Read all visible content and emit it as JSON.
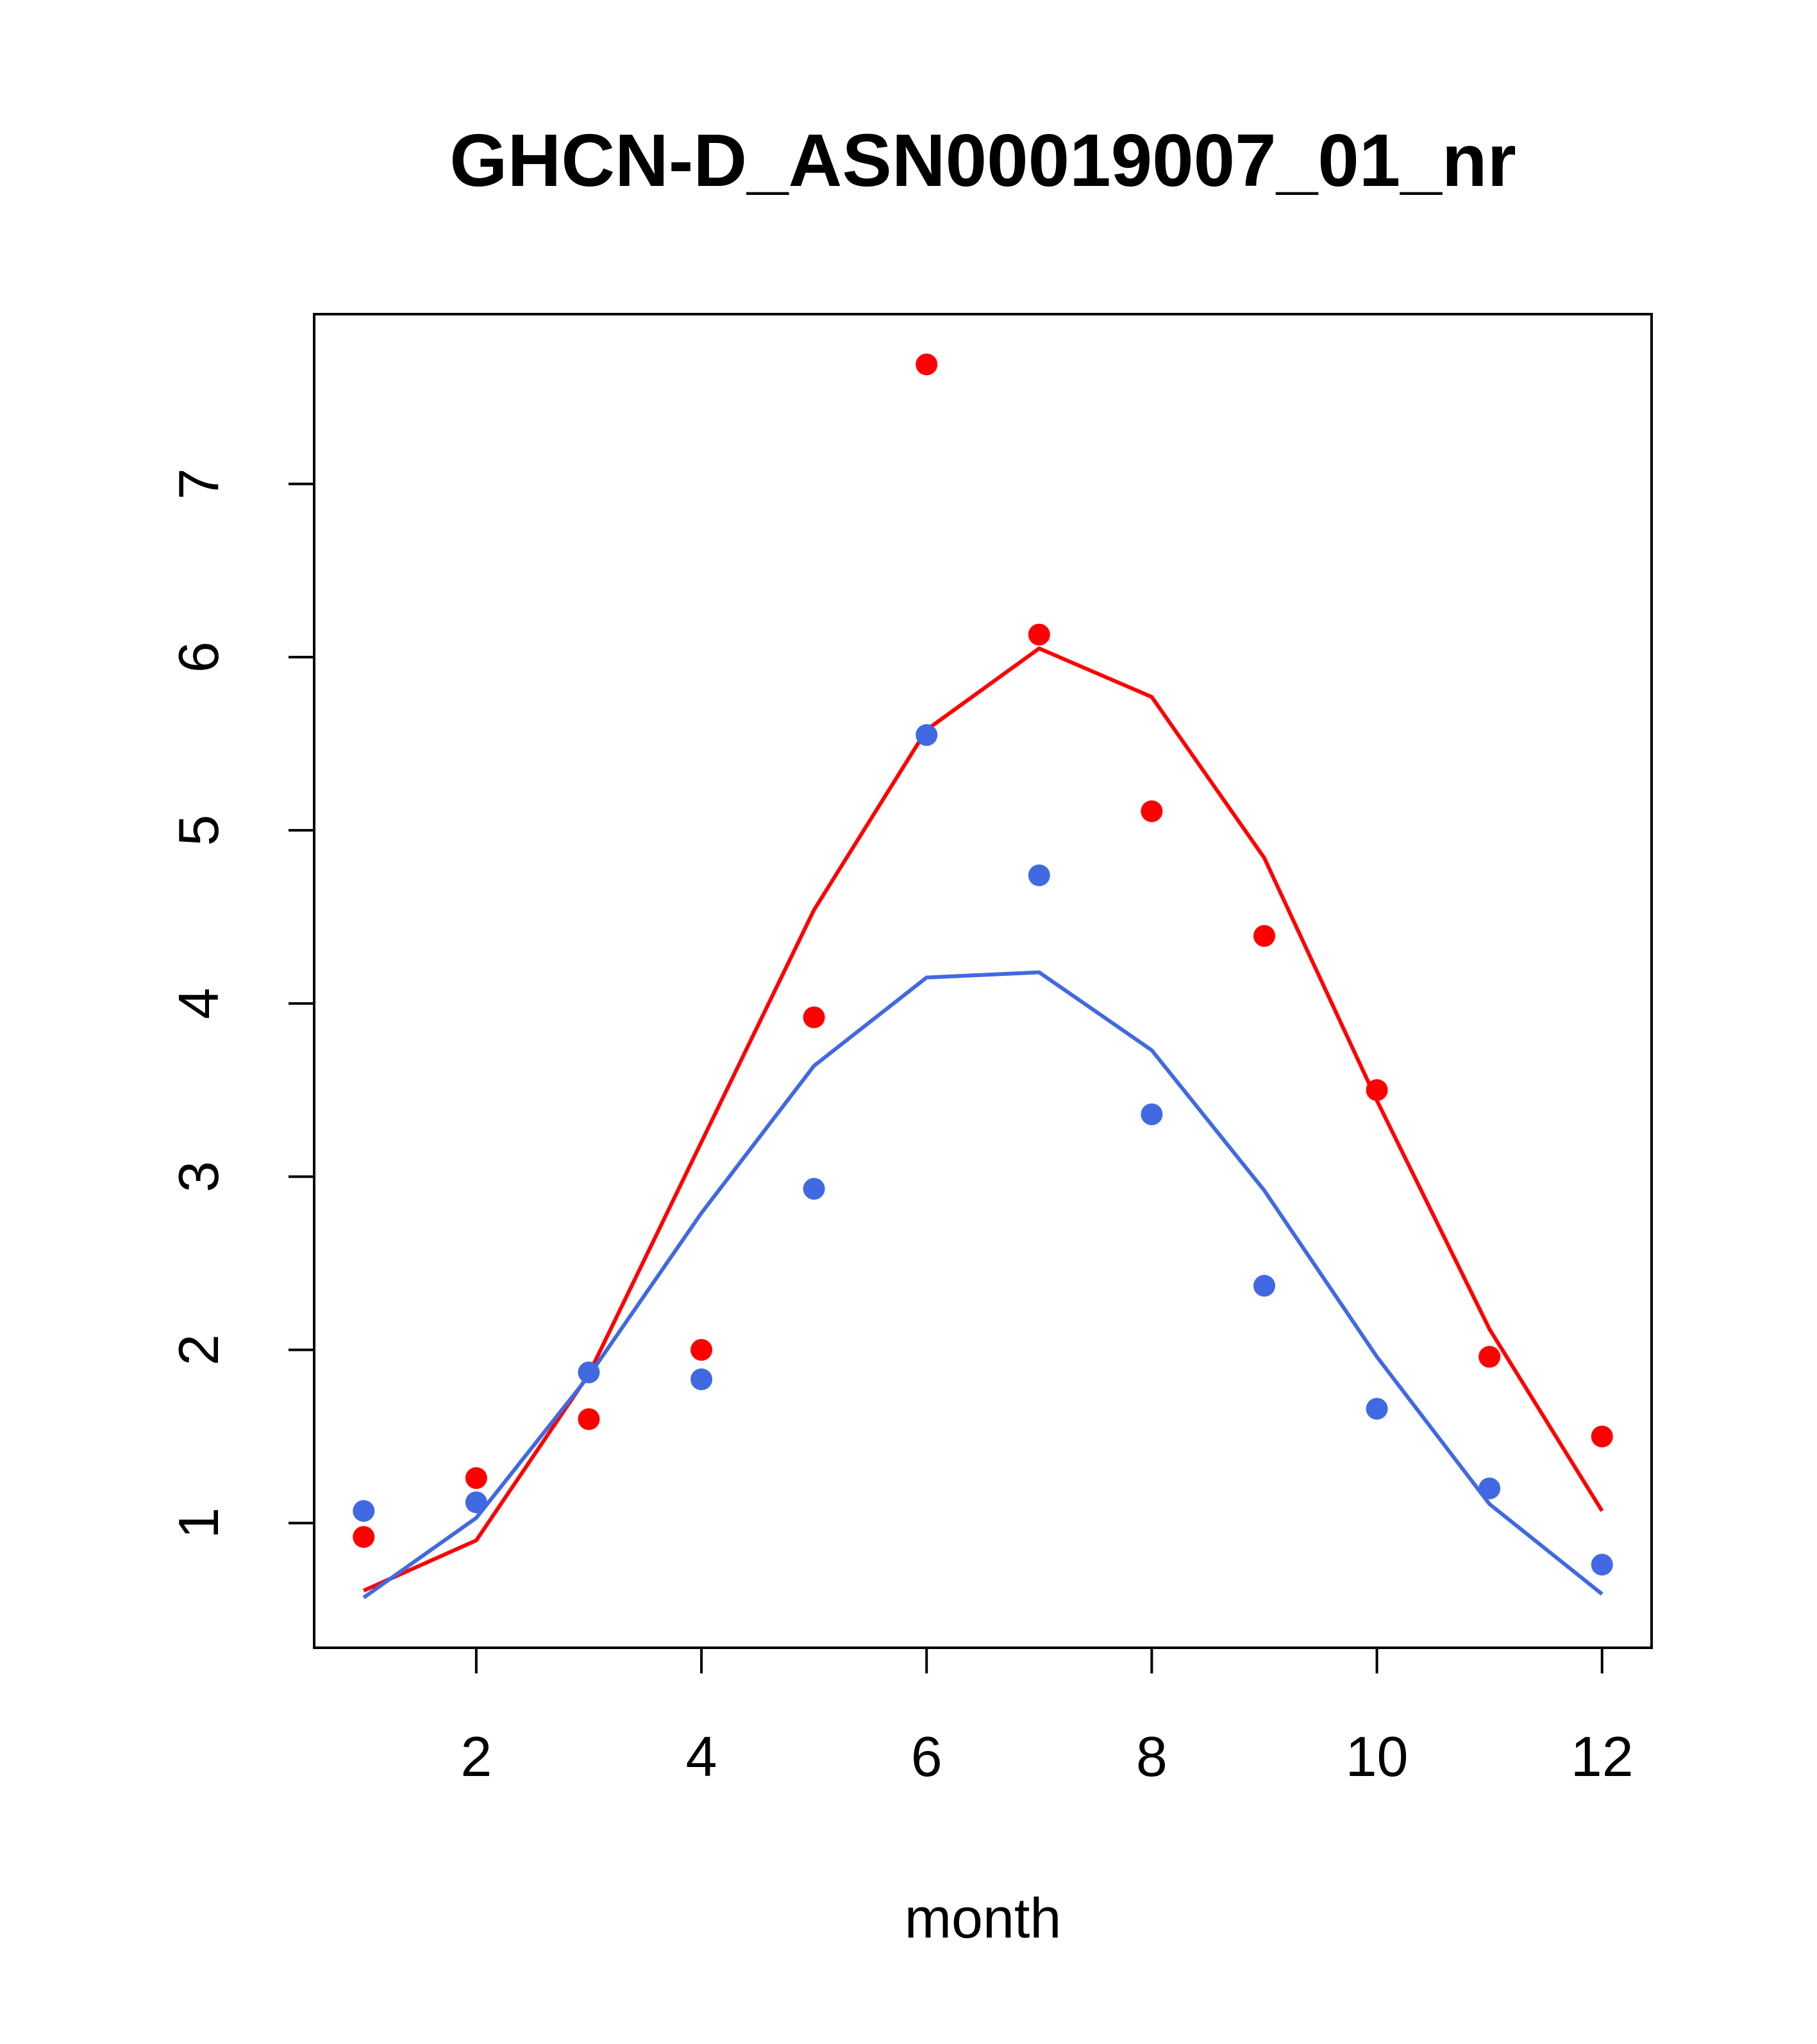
{
  "chart_data": {
    "type": "scatter",
    "title": "GHCN-D_ASN00019007_01_nr",
    "xlabel": "month",
    "ylabel": "",
    "xlim": [
      0.56,
      12.44
    ],
    "ylim": [
      0.28,
      7.98
    ],
    "x_ticks": [
      2,
      4,
      6,
      8,
      10,
      12
    ],
    "y_ticks": [
      1,
      2,
      3,
      4,
      5,
      6,
      7
    ],
    "grid": false,
    "legend": "none",
    "x": [
      1,
      2,
      3,
      4,
      5,
      6,
      7,
      8,
      9,
      10,
      11,
      12
    ],
    "series": [
      {
        "color": "#ff0000",
        "points": [
          0.92,
          1.26,
          1.6,
          2.0,
          3.92,
          7.69,
          6.13,
          5.11,
          4.39,
          3.5,
          1.96,
          1.5
        ],
        "line": [
          0.61,
          0.9,
          1.86,
          3.2,
          4.54,
          5.58,
          6.05,
          5.77,
          4.84,
          3.44,
          2.12,
          1.07
        ]
      },
      {
        "color": "#4169e1",
        "points": [
          1.07,
          1.12,
          1.87,
          1.83,
          2.93,
          5.55,
          4.74,
          3.36,
          2.37,
          1.66,
          1.2,
          0.76
        ],
        "line": [
          0.57,
          1.03,
          1.85,
          2.79,
          3.64,
          4.15,
          4.18,
          3.73,
          2.92,
          1.96,
          1.11,
          0.59
        ]
      }
    ]
  }
}
